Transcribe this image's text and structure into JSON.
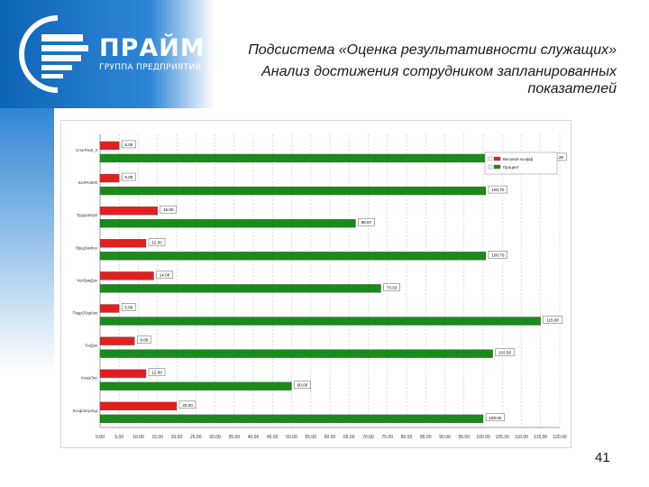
{
  "logo": {
    "name": "ПРАЙМ",
    "subtitle": "ГРУППА ПРЕДПРИЯТИЙ",
    "colors": {
      "primary": "#0d63b5",
      "light": "#2f86d6"
    }
  },
  "slide": {
    "title_line1": "Подсистема «Оценка результативности служащих»",
    "title_line2": "Анализ достижения сотрудником  запланированных показателей",
    "page_number": "41"
  },
  "chart_data": {
    "type": "bar",
    "orientation": "horizontal",
    "categories": [
      "СлогРаз0_0",
      "КачРез000",
      "ТрудоЗатр0",
      "ПредЗакКон",
      "КолЗамДок",
      "ПодрОбщКом",
      "ТехДок",
      "КоэфЭкс",
      "КоэфЗатрЗад"
    ],
    "series": [
      {
        "name": "Весовой коэфф",
        "color": "#e02020",
        "values": [
          5.0,
          5.0,
          15.0,
          12.0,
          14.0,
          5.0,
          9.0,
          12.0,
          20.0
        ],
        "labels": [
          "5.00",
          "5.00",
          "15.00",
          "12.00",
          "14.00",
          "5.00",
          "9.00",
          "12.00",
          "20.00"
        ]
      },
      {
        "name": "Процент",
        "color": "#1a8a1a",
        "values": [
          116.2,
          100.7,
          66.7,
          100.7,
          73.3,
          115.0,
          102.5,
          50.0,
          100.0
        ],
        "labels": [
          "116.20",
          "100.70",
          "66.67",
          "100.70",
          "73.33",
          "115.00",
          "102.50",
          "50.00",
          "100.00"
        ]
      }
    ],
    "xlim": [
      0,
      120
    ],
    "x_ticks": [
      "0.00",
      "5.00",
      "10.00",
      "15.00",
      "20.00",
      "25.00",
      "30.00",
      "35.00",
      "40.00",
      "45.00",
      "50.00",
      "55.00",
      "60.00",
      "65.00",
      "70.00",
      "75.00",
      "80.00",
      "85.00",
      "90.00",
      "95.00",
      "100.00",
      "105.00",
      "110.00",
      "115.00",
      "120.00"
    ],
    "grid": true,
    "legend_position": "top-right"
  }
}
